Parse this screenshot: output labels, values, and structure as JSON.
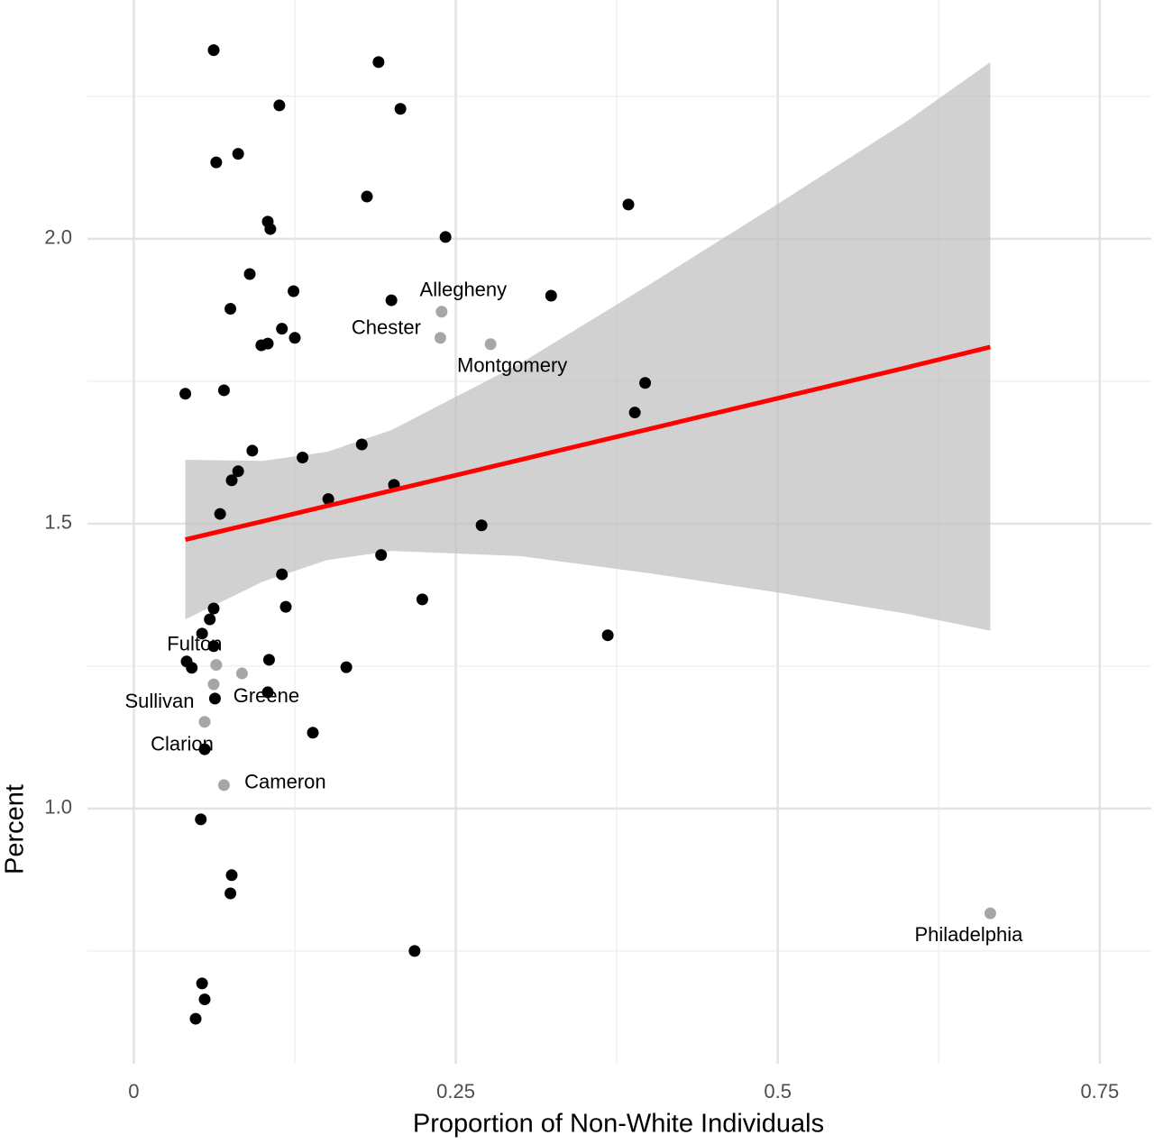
{
  "chart_data": {
    "type": "scatter",
    "x_label": "Proportion of Non-White Individuals",
    "y_label": "Percent",
    "xlim": [
      -0.036,
      0.79
    ],
    "ylim": [
      0.552,
      2.419
    ],
    "xticks": [
      0,
      0.25,
      0.5,
      0.75
    ],
    "yticks": [
      {
        "value": 1.0,
        "label": "1.0"
      },
      {
        "value": 1.5,
        "label": "1.5"
      },
      {
        "value": 2.0,
        "label": "2.0"
      }
    ],
    "x_minor_grid": [
      0.125,
      0.375,
      0.625
    ],
    "y_minor_grid": [
      0.75,
      1.25,
      1.75,
      2.25
    ],
    "grid": true,
    "points": {
      "color": "#000000",
      "x": [
        0.062,
        0.19,
        0.113,
        0.207,
        0.064,
        0.081,
        0.181,
        0.384,
        0.104,
        0.106,
        0.242,
        0.09,
        0.124,
        0.2,
        0.324,
        0.075,
        0.115,
        0.104,
        0.099,
        0.125,
        0.04,
        0.07,
        0.397,
        0.389,
        0.177,
        0.092,
        0.131,
        0.081,
        0.076,
        0.202,
        0.151,
        0.067,
        0.27,
        0.192,
        0.115,
        0.224,
        0.118,
        0.062,
        0.059,
        0.053,
        0.368,
        0.062,
        0.041,
        0.045,
        0.105,
        0.165,
        0.104,
        0.063,
        0.139,
        0.055,
        0.052,
        0.076,
        0.075,
        0.218,
        0.053,
        0.055,
        0.048
      ],
      "y": [
        2.331,
        2.31,
        2.234,
        2.228,
        2.134,
        2.149,
        2.074,
        2.06,
        2.03,
        2.017,
        2.003,
        1.938,
        1.908,
        1.892,
        1.9,
        1.877,
        1.842,
        1.816,
        1.813,
        1.826,
        1.728,
        1.734,
        1.747,
        1.695,
        1.639,
        1.628,
        1.616,
        1.592,
        1.576,
        1.568,
        1.543,
        1.517,
        1.497,
        1.445,
        1.411,
        1.367,
        1.354,
        1.351,
        1.332,
        1.307,
        1.304,
        1.285,
        1.258,
        1.247,
        1.261,
        1.248,
        1.204,
        1.193,
        1.133,
        1.104,
        0.981,
        0.883,
        0.851,
        0.75,
        0.693,
        0.665,
        0.631
      ]
    },
    "labeled": {
      "color": "#a6a6a6",
      "labels": [
        "Allegheny",
        "Chester",
        "Montgomery",
        "Fulton",
        "Greene",
        "Sullivan",
        "Clarion",
        "Cameron",
        "Philadelphia"
      ],
      "x": [
        0.239,
        0.238,
        0.277,
        0.064,
        0.084,
        0.062,
        0.055,
        0.07,
        0.665
      ],
      "y": [
        1.872,
        1.826,
        1.815,
        1.252,
        1.237,
        1.218,
        1.152,
        1.041,
        0.816
      ]
    },
    "smooth": {
      "line_color": "#ff0000",
      "band_color": "#bebebe",
      "x": [
        0.04,
        0.1,
        0.15,
        0.2,
        0.3,
        0.4,
        0.5,
        0.6,
        0.665
      ],
      "fit": [
        1.472,
        1.504,
        1.531,
        1.558,
        1.612,
        1.666,
        1.72,
        1.774,
        1.81
      ],
      "upper": [
        1.612,
        1.61,
        1.626,
        1.664,
        1.781,
        1.919,
        2.061,
        2.206,
        2.31
      ],
      "lower": [
        1.332,
        1.398,
        1.436,
        1.452,
        1.443,
        1.413,
        1.379,
        1.342,
        1.312
      ]
    }
  }
}
